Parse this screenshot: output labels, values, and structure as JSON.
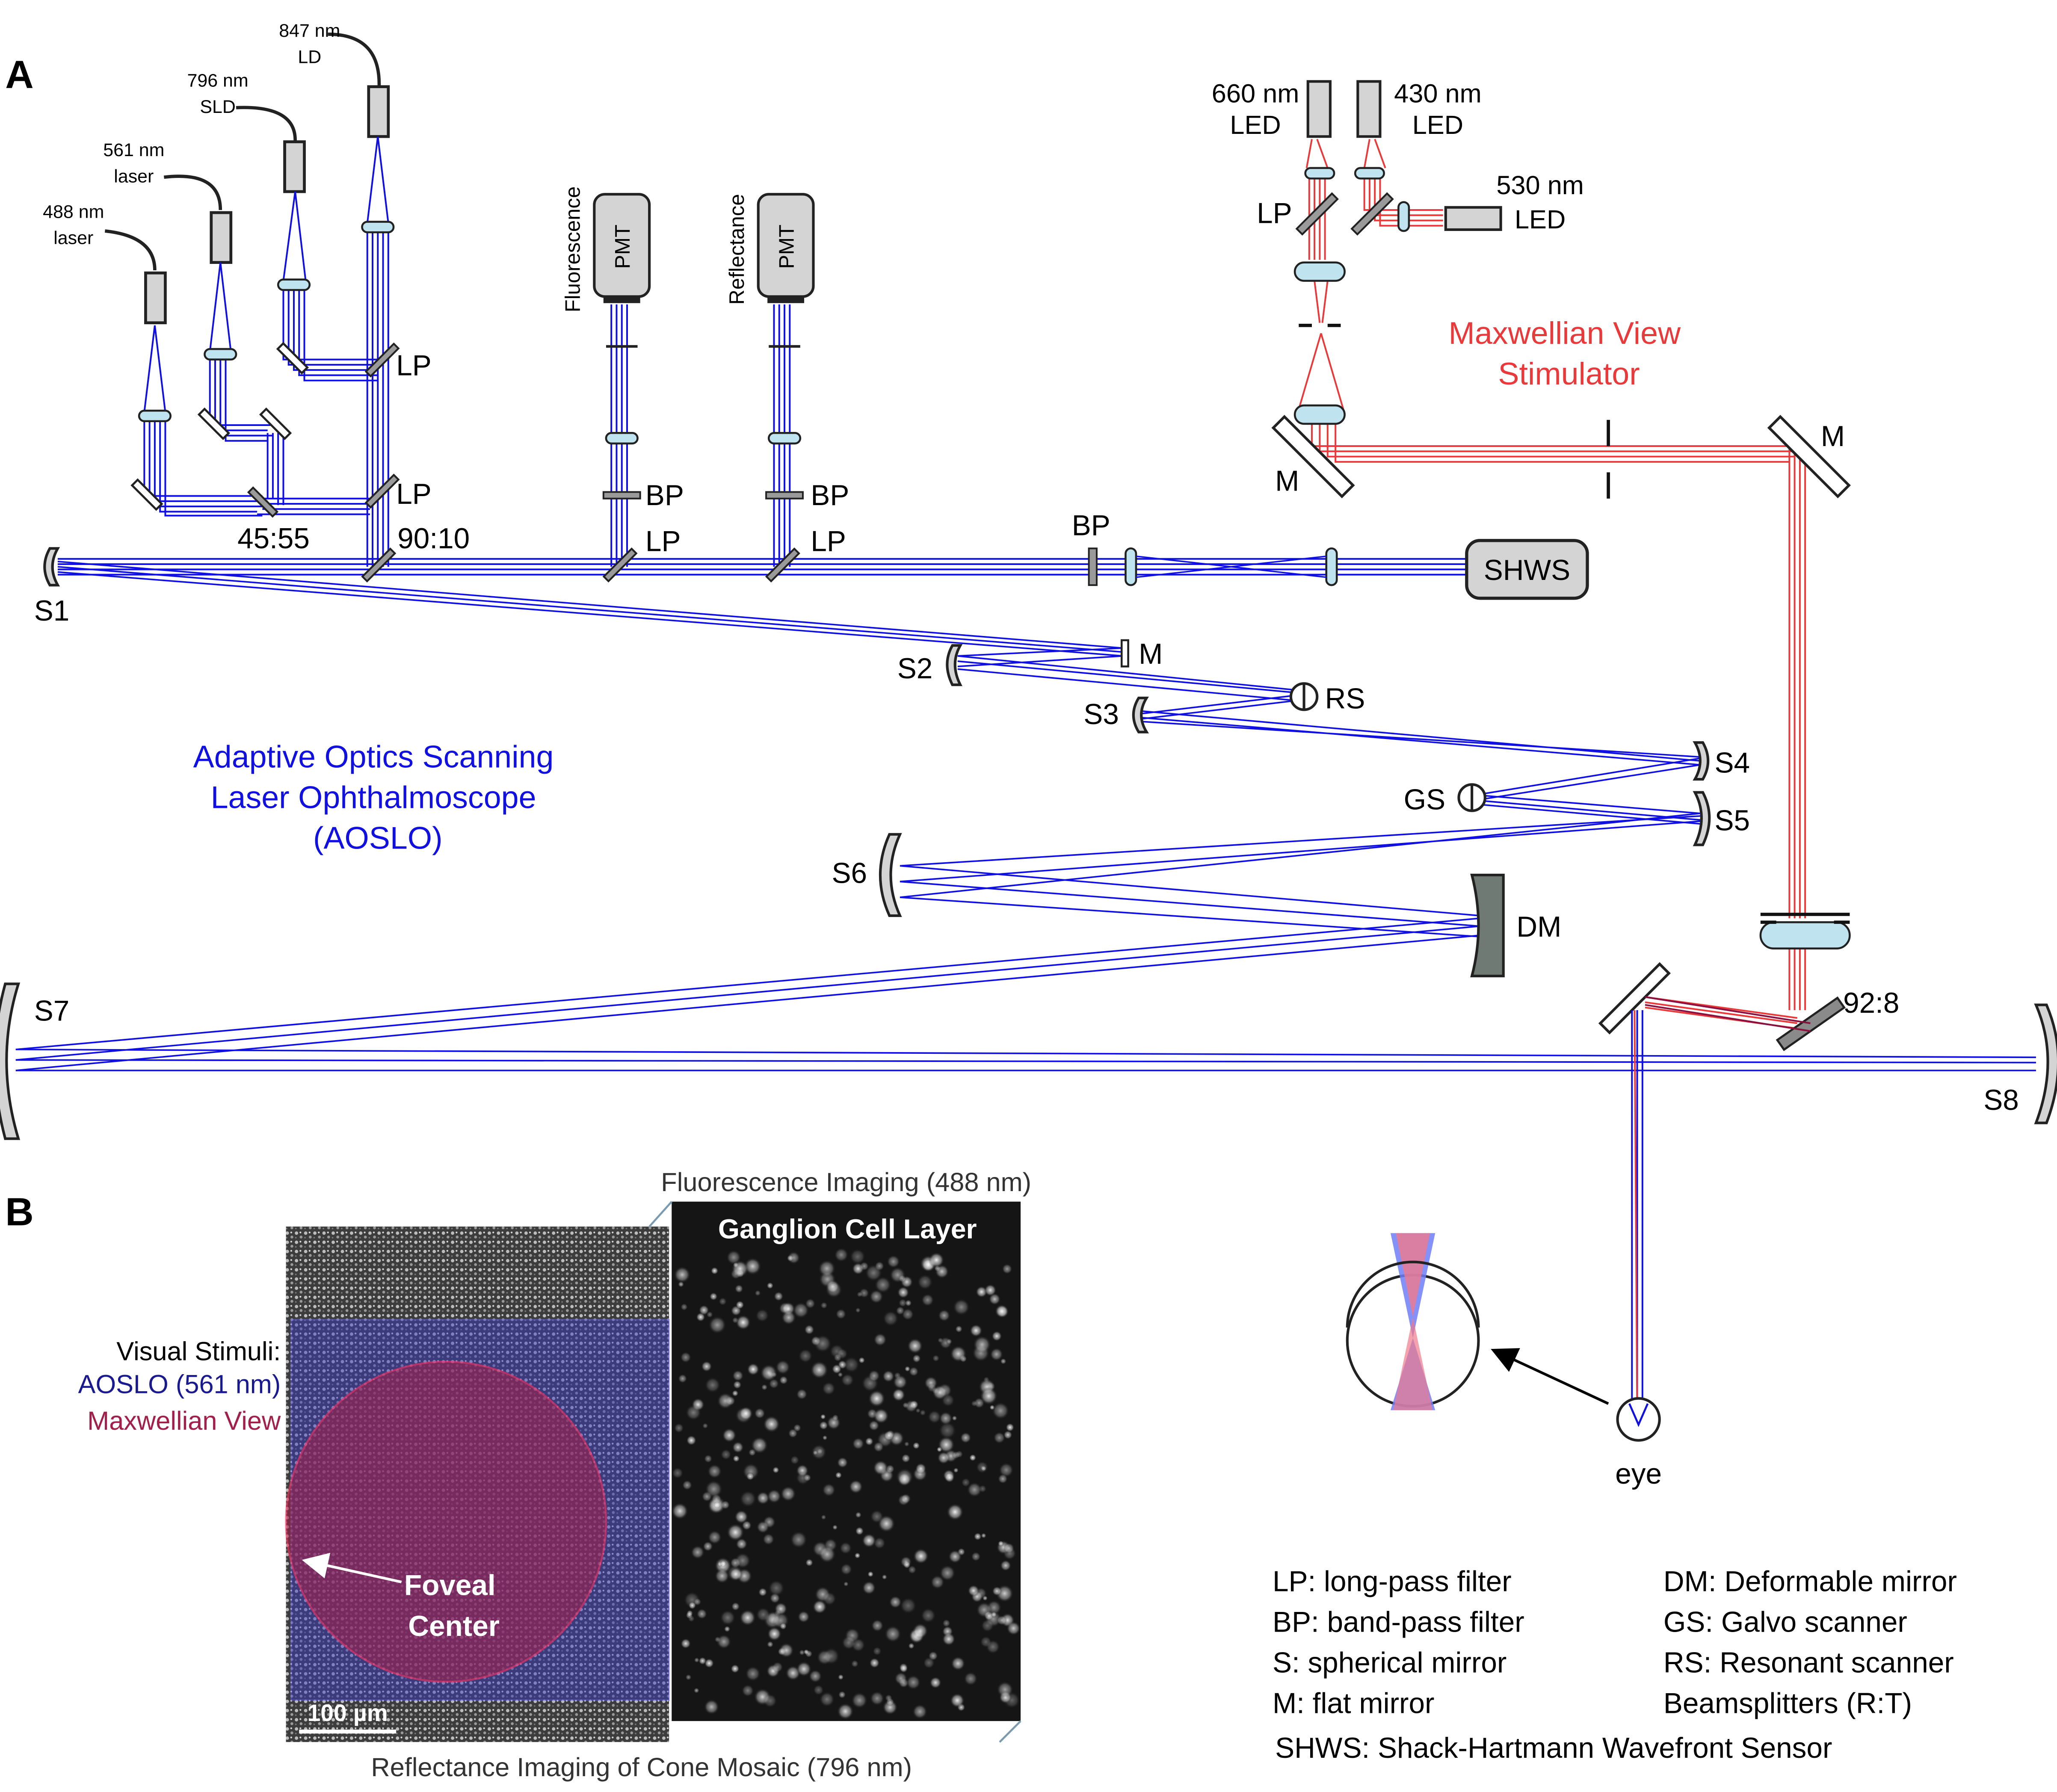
{
  "panel_labels": {
    "a": "A",
    "b": "B"
  },
  "sources": {
    "laser_488": [
      "488 nm",
      "laser"
    ],
    "laser_561": [
      "561 nm",
      "laser"
    ],
    "sld_796": [
      "796 nm",
      "SLD"
    ],
    "ld_847": [
      "847 nm",
      "LD"
    ]
  },
  "pmts": {
    "fluorescence": {
      "label": "PMT",
      "side": "Fluorescence"
    },
    "reflectance": {
      "label": "PMT",
      "side": "Reflectance"
    }
  },
  "optics": {
    "lp": "LP",
    "bp": "BP",
    "m": "M",
    "bs_45_55": "45:55",
    "bs_90_10": "90:10",
    "bs_92_8": "92:8",
    "s1": "S1",
    "s2": "S2",
    "s3": "S3",
    "s4": "S4",
    "s5": "S5",
    "s6": "S6",
    "s7": "S7",
    "s8": "S8",
    "rs": "RS",
    "gs": "GS",
    "dm": "DM",
    "shws": "SHWS",
    "eye": "eye"
  },
  "leds": {
    "led_660": [
      "660 nm",
      "LED"
    ],
    "led_430": [
      "430 nm",
      "LED"
    ],
    "led_530": [
      "530 nm",
      "LED"
    ]
  },
  "titles": {
    "maxwellian": [
      "Maxwellian View",
      "Stimulator"
    ],
    "aoslo": [
      "Adaptive Optics Scanning",
      "Laser Ophthalmoscope",
      "(AOSLO)"
    ]
  },
  "colors": {
    "aoslo_blue": "#1010e0",
    "maxwellian_red": "#e83a3a",
    "foveal_red": "#a0204a",
    "dm_gray": "#6f7a74"
  },
  "legend": {
    "left": [
      "LP: long-pass filter",
      "BP: band-pass filter",
      "S: spherical mirror",
      "M: flat mirror"
    ],
    "right": [
      "DM: Deformable mirror",
      "GS: Galvo scanner",
      "RS: Resonant scanner",
      "Beamsplitters (R:T)"
    ],
    "bottom": "SHWS: Shack-Hartmann Wavefront Sensor"
  },
  "panel_b": {
    "top_caption": "Fluorescence Imaging (488 nm)",
    "bottom_caption": "Reflectance Imaging of Cone Mosaic (796 nm)",
    "gcl_label": "Ganglion Cell Layer",
    "visual_stimuli": {
      "title": "Visual Stimuli:",
      "aoslo": "AOSLO (561 nm)",
      "maxwellian": "Maxwellian View"
    },
    "foveal": [
      "Foveal",
      "Center"
    ],
    "scale_bar": "100 µm"
  }
}
